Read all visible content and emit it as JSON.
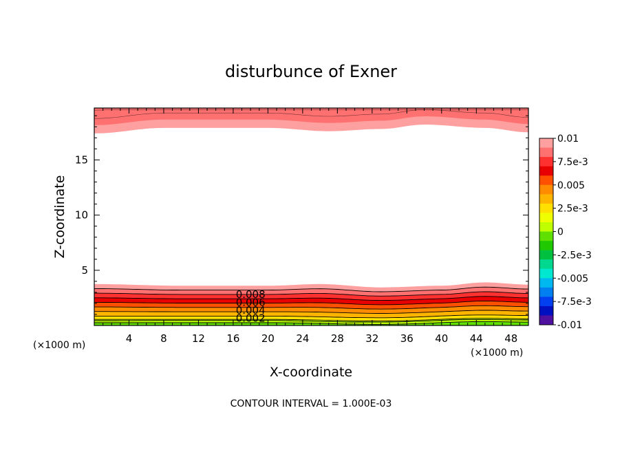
{
  "chart_data": {
    "type": "contour",
    "title": "disturbunce of Exner",
    "xlabel": "X-coordinate",
    "ylabel": "Z-coordinate",
    "x_unit_left": "(×1000 m)",
    "x_unit_right": "(×1000 m)",
    "xlim": [
      0,
      50
    ],
    "ylim": [
      0,
      19.7
    ],
    "x_ticks": [
      4,
      8,
      12,
      16,
      20,
      24,
      28,
      32,
      36,
      40,
      44,
      48
    ],
    "y_ticks": [
      5,
      10,
      15
    ],
    "footer": "CONTOUR INTERVAL = 1.000E-03",
    "contour_interval": 0.001,
    "contour_labels": [
      "0.008",
      "0.006",
      "0.004",
      "0.002"
    ],
    "colorbar": {
      "labels": [
        "0.01",
        "7.5e-3",
        "0.005",
        "2.5e-3",
        "0",
        "-2.5e-3",
        "-0.005",
        "-7.5e-3",
        "-0.01"
      ],
      "levels_top_to_bottom": [
        0.01,
        0.009,
        0.008,
        0.007,
        0.006,
        0.005,
        0.004,
        0.003,
        0.002,
        0.001,
        0,
        -0.001,
        -0.002,
        -0.003,
        -0.004,
        -0.005,
        -0.006,
        -0.007,
        -0.008,
        -0.009
      ],
      "colors_top_to_bottom": [
        "#ffa0a0",
        "#ff7070",
        "#ff3030",
        "#e80000",
        "#ff5000",
        "#ff8c00",
        "#ffb400",
        "#ffe000",
        "#f0ff00",
        "#c0ff00",
        "#60e000",
        "#20c800",
        "#00c040",
        "#00d890",
        "#00e8d0",
        "#00b8f0",
        "#0080f0",
        "#0040f0",
        "#0010c0",
        "#5010a0"
      ]
    },
    "lower_band": {
      "z_top_of_filled_region_by_x": [
        [
          0,
          3.75
        ],
        [
          10,
          3.6
        ],
        [
          20,
          3.6
        ],
        [
          26,
          3.75
        ],
        [
          33,
          3.45
        ],
        [
          40,
          3.6
        ],
        [
          45,
          3.9
        ],
        [
          50,
          3.7
        ]
      ],
      "fill_colors_top_to_bottom": [
        "#ffa0a0",
        "#ff7070",
        "#ff3030",
        "#e80000",
        "#ff5000",
        "#ff8c00",
        "#ffb400",
        "#ffe000",
        "#f0ff00",
        "#c0ff00",
        "#60e000"
      ],
      "z_of_0_002_contour_by_x": [
        [
          0,
          0.85
        ],
        [
          20,
          0.85
        ],
        [
          33,
          0.7
        ],
        [
          45,
          0.95
        ],
        [
          50,
          0.9
        ]
      ]
    },
    "upper_band": {
      "z_bottom_of_filled_region_by_x": [
        [
          0,
          17.4
        ],
        [
          8,
          17.9
        ],
        [
          20,
          17.9
        ],
        [
          27,
          17.6
        ],
        [
          33,
          17.8
        ],
        [
          38,
          18.2
        ],
        [
          45,
          17.9
        ],
        [
          50,
          17.5
        ]
      ],
      "fill_colors_bottom_to_top": [
        "#ffa0a0",
        "#ff7070"
      ]
    }
  }
}
